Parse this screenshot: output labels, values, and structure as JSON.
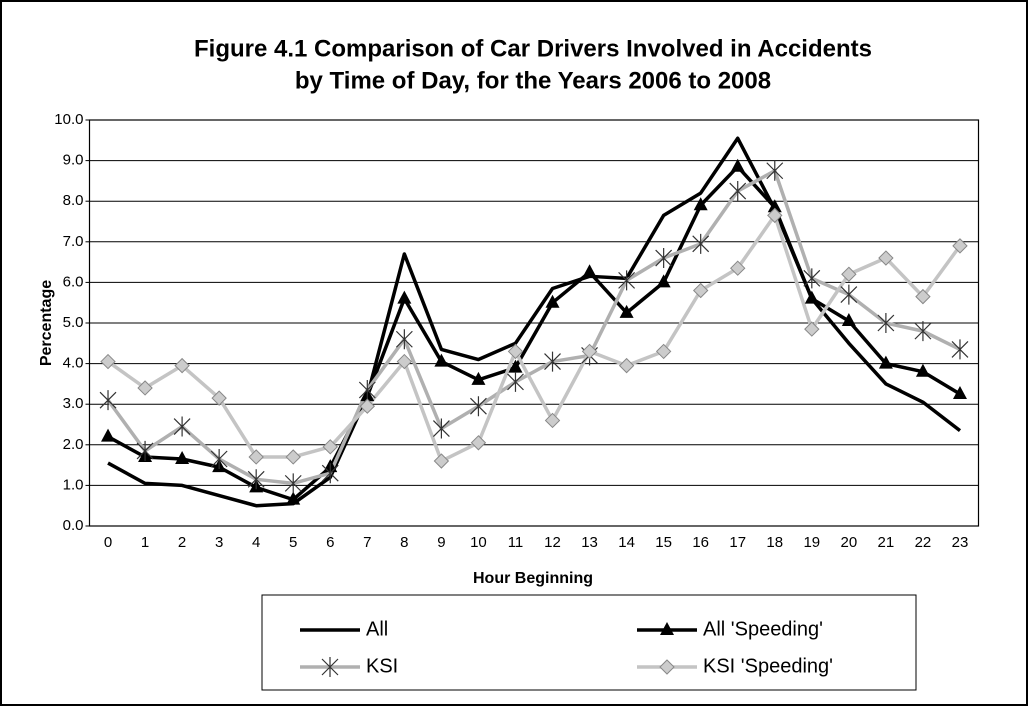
{
  "chart_data": {
    "type": "line",
    "title": [
      "Figure 4.1 Comparison of Car Drivers Involved in Accidents",
      "by Time of Day, for the Years 2006 to 2008"
    ],
    "x_label": "Hour Beginning",
    "y_label": "Percentage",
    "categories": [
      "0",
      "1",
      "2",
      "3",
      "4",
      "5",
      "6",
      "7",
      "8",
      "9",
      "10",
      "11",
      "12",
      "13",
      "14",
      "15",
      "16",
      "17",
      "18",
      "19",
      "20",
      "21",
      "22",
      "23"
    ],
    "ylim": [
      0,
      10
    ],
    "yticks": [
      {
        "value": 0,
        "label": "0.0"
      },
      {
        "value": 1,
        "label": "1.0"
      },
      {
        "value": 2,
        "label": "2.0"
      },
      {
        "value": 3,
        "label": "3.0"
      },
      {
        "value": 4,
        "label": "4.0"
      },
      {
        "value": 5,
        "label": "5.0"
      },
      {
        "value": 6,
        "label": "6.0"
      },
      {
        "value": 7,
        "label": "7.0"
      },
      {
        "value": 8,
        "label": "8.0"
      },
      {
        "value": 9,
        "label": "9.0"
      },
      {
        "value": 10,
        "label": "10.0"
      }
    ],
    "grid": true,
    "legend": "bottom",
    "series": [
      {
        "name": "All",
        "color": "#000000",
        "marker": "none",
        "values": [
          1.55,
          1.05,
          1.0,
          0.75,
          0.5,
          0.55,
          1.2,
          3.2,
          6.7,
          4.35,
          4.1,
          4.5,
          5.85,
          6.15,
          6.1,
          7.65,
          8.2,
          9.55,
          7.8,
          5.6,
          4.5,
          3.5,
          3.05,
          2.35
        ]
      },
      {
        "name": "All 'Speeding'",
        "color": "#000000",
        "marker": "triangle",
        "values": [
          2.2,
          1.7,
          1.65,
          1.45,
          0.95,
          0.65,
          1.45,
          3.2,
          5.6,
          4.05,
          3.6,
          3.9,
          5.5,
          6.25,
          5.25,
          6.0,
          7.9,
          8.85,
          7.85,
          5.6,
          5.05,
          4.0,
          3.8,
          3.25
        ]
      },
      {
        "name": "KSI",
        "color": "#b0b0b0",
        "marker": "asterisk",
        "values": [
          3.1,
          1.85,
          2.45,
          1.65,
          1.15,
          1.05,
          1.3,
          3.35,
          4.6,
          2.4,
          2.95,
          3.55,
          4.05,
          4.2,
          6.05,
          6.6,
          6.95,
          8.25,
          8.75,
          6.1,
          5.7,
          5.0,
          4.8,
          4.35
        ]
      },
      {
        "name": "KSI 'Speeding'",
        "color": "#c4c4c4",
        "marker": "diamond",
        "values": [
          4.05,
          3.4,
          3.95,
          3.15,
          1.7,
          1.7,
          1.95,
          2.95,
          4.05,
          1.6,
          2.05,
          4.3,
          2.6,
          4.3,
          3.95,
          4.3,
          5.8,
          6.35,
          7.65,
          4.85,
          6.2,
          6.6,
          5.65,
          6.9
        ]
      }
    ]
  }
}
